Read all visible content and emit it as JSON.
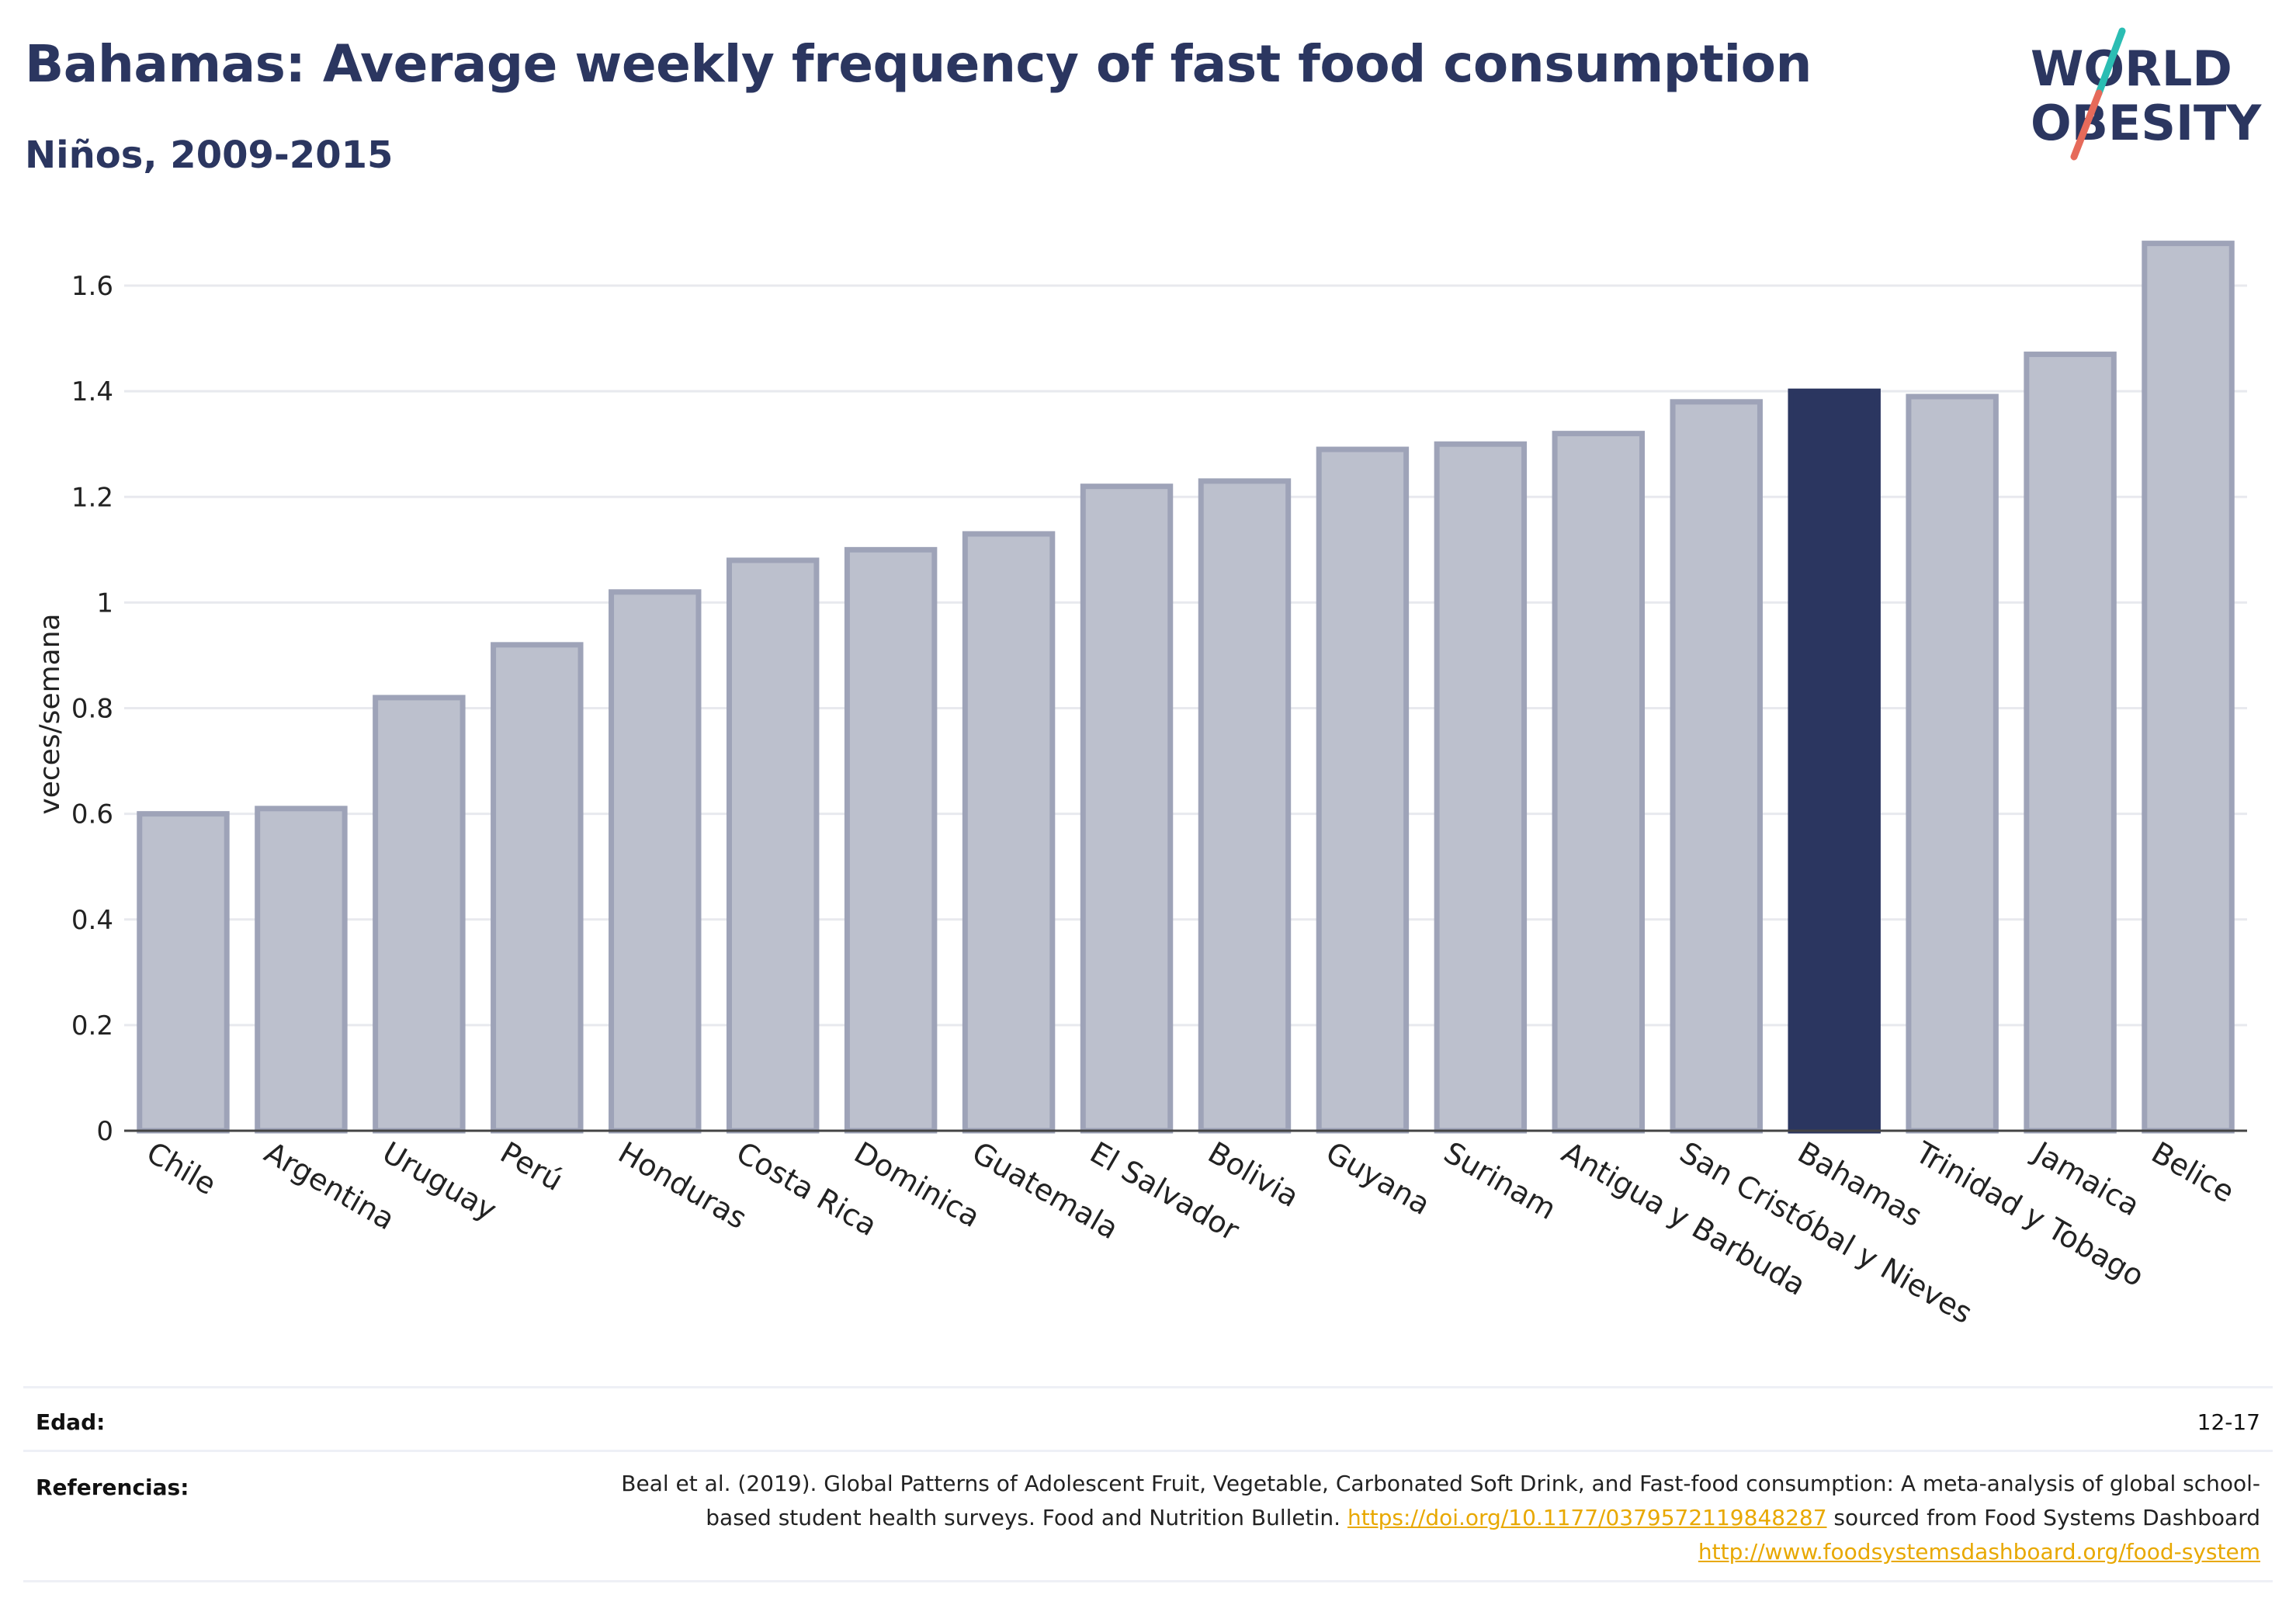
{
  "header": {
    "title": "Bahamas: Average weekly frequency of fast food consumption",
    "subtitle": "Niños, 2009-2015"
  },
  "logo": {
    "line1": "WORLD",
    "line2": "OBESITY",
    "color_text": "#2b3660",
    "color_slash_top": "#2bbdb3",
    "color_slash_bottom": "#e66a5a"
  },
  "chart_data": {
    "type": "bar",
    "ylabel": "veces/semana",
    "ylim": [
      0,
      1.7
    ],
    "yticks": [
      0,
      0.2,
      0.4,
      0.6,
      0.8,
      1,
      1.2,
      1.4,
      1.6
    ],
    "ytick_labels": [
      "0",
      "0.2",
      "0.4",
      "0.6",
      "0.8",
      "1",
      "1.2",
      "1.4",
      "1.6"
    ],
    "grid": true,
    "categories": [
      "Chile",
      "Argentina",
      "Uruguay",
      "Perú",
      "Honduras",
      "Costa Rica",
      "Dominica",
      "Guatemala",
      "El Salvador",
      "Bolivia",
      "Guyana",
      "Surinam",
      "Antigua y Barbuda",
      "San Cristóbal y Nieves",
      "Bahamas",
      "Trinidad y Tobago",
      "Jamaica",
      "Belice"
    ],
    "values": [
      0.6,
      0.61,
      0.82,
      0.92,
      1.02,
      1.08,
      1.1,
      1.13,
      1.22,
      1.23,
      1.29,
      1.3,
      1.32,
      1.38,
      1.4,
      1.39,
      1.47,
      1.68
    ],
    "highlight": "Bahamas",
    "bar_color": "#bcc0cd",
    "bar_edge_color": "#9ea3b8",
    "highlight_color": "#2b3660"
  },
  "footer": {
    "age_label": "Edad:",
    "age_value": "12-17",
    "refs_label": "Referencias:",
    "refs_text_1": "Beal et al. (2019). Global Patterns of Adolescent Fruit, Vegetable, Carbonated Soft Drink, and Fast-food consumption: A meta-analysis of global school-based student health surveys. Food and Nutrition Bulletin.",
    "refs_link_1": "https://doi.org/10.1177/0379572119848287",
    "refs_text_2": "sourced from Food Systems Dashboard",
    "refs_link_2": "http://www.foodsystemsdashboard.org/food-system"
  }
}
